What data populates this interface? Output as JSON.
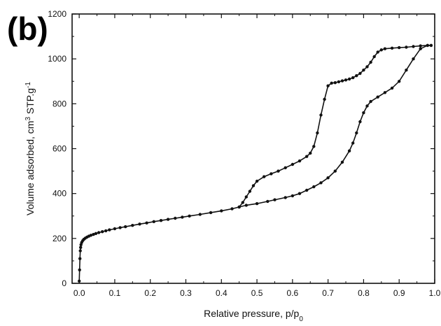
{
  "panel_label": "(b)",
  "chart_data": {
    "type": "line",
    "xlabel": "Relative pressure, p/p",
    "xlabel_sub": "0",
    "ylabel": "Volume adsorbed, cm",
    "ylabel_sup": "3",
    "ylabel_unit": " STP.g",
    "ylabel_unit_sup": "-1",
    "xlim": [
      -0.02,
      1.0
    ],
    "ylim": [
      0,
      1200
    ],
    "x_ticks": [
      "0.0",
      "0.1",
      "0.2",
      "0.3",
      "0.4",
      "0.5",
      "0.6",
      "0.7",
      "0.8",
      "0.9",
      "1.0"
    ],
    "y_ticks": [
      "0",
      "200",
      "400",
      "600",
      "800",
      "1000",
      "1200"
    ],
    "x_tick_values": [
      0,
      0.1,
      0.2,
      0.3,
      0.4,
      0.5,
      0.6,
      0.7,
      0.8,
      0.9,
      1.0
    ],
    "y_tick_values": [
      0,
      200,
      400,
      600,
      800,
      1000,
      1200
    ],
    "grid": false,
    "legend": "none",
    "color": "#111111",
    "series": [
      {
        "points": [
          [
            0.0,
            10
          ],
          [
            0.001,
            60
          ],
          [
            0.002,
            110
          ],
          [
            0.003,
            145
          ],
          [
            0.004,
            160
          ],
          [
            0.005,
            172
          ],
          [
            0.007,
            182
          ],
          [
            0.01,
            190
          ],
          [
            0.013,
            196
          ],
          [
            0.017,
            201
          ],
          [
            0.022,
            206
          ],
          [
            0.027,
            210
          ],
          [
            0.033,
            214
          ],
          [
            0.04,
            218
          ],
          [
            0.047,
            222
          ],
          [
            0.055,
            226
          ],
          [
            0.065,
            230
          ],
          [
            0.075,
            234
          ],
          [
            0.085,
            238
          ],
          [
            0.1,
            243
          ],
          [
            0.115,
            248
          ],
          [
            0.13,
            252
          ],
          [
            0.15,
            258
          ],
          [
            0.17,
            264
          ],
          [
            0.19,
            269
          ],
          [
            0.21,
            275
          ],
          [
            0.23,
            280
          ],
          [
            0.25,
            285
          ],
          [
            0.27,
            290
          ],
          [
            0.29,
            295
          ],
          [
            0.31,
            300
          ],
          [
            0.34,
            307
          ],
          [
            0.37,
            315
          ],
          [
            0.4,
            323
          ],
          [
            0.43,
            332
          ],
          [
            0.45,
            340
          ],
          [
            0.47,
            348
          ],
          [
            0.5,
            355
          ],
          [
            0.53,
            365
          ],
          [
            0.55,
            372
          ],
          [
            0.58,
            382
          ],
          [
            0.6,
            390
          ],
          [
            0.62,
            400
          ],
          [
            0.64,
            415
          ],
          [
            0.66,
            430
          ],
          [
            0.68,
            448
          ],
          [
            0.7,
            470
          ],
          [
            0.72,
            500
          ],
          [
            0.74,
            540
          ],
          [
            0.76,
            590
          ],
          [
            0.77,
            625
          ],
          [
            0.78,
            670
          ],
          [
            0.79,
            720
          ],
          [
            0.8,
            760
          ],
          [
            0.81,
            790
          ],
          [
            0.82,
            810
          ],
          [
            0.84,
            830
          ],
          [
            0.86,
            850
          ],
          [
            0.88,
            870
          ],
          [
            0.9,
            900
          ],
          [
            0.92,
            950
          ],
          [
            0.94,
            1000
          ],
          [
            0.96,
            1045
          ],
          [
            0.98,
            1060
          ],
          [
            0.99,
            1060
          ]
        ]
      },
      {
        "points": [
          [
            0.99,
            1060
          ],
          [
            0.98,
            1060
          ],
          [
            0.96,
            1058
          ],
          [
            0.94,
            1055
          ],
          [
            0.92,
            1052
          ],
          [
            0.9,
            1050
          ],
          [
            0.88,
            1048
          ],
          [
            0.86,
            1045
          ],
          [
            0.85,
            1040
          ],
          [
            0.84,
            1030
          ],
          [
            0.83,
            1010
          ],
          [
            0.82,
            985
          ],
          [
            0.81,
            965
          ],
          [
            0.8,
            950
          ],
          [
            0.79,
            935
          ],
          [
            0.78,
            925
          ],
          [
            0.77,
            916
          ],
          [
            0.76,
            910
          ],
          [
            0.75,
            906
          ],
          [
            0.74,
            902
          ],
          [
            0.73,
            898
          ],
          [
            0.72,
            894
          ],
          [
            0.71,
            892
          ],
          [
            0.7,
            880
          ],
          [
            0.69,
            820
          ],
          [
            0.68,
            750
          ],
          [
            0.67,
            670
          ],
          [
            0.66,
            610
          ],
          [
            0.65,
            580
          ],
          [
            0.64,
            565
          ],
          [
            0.62,
            545
          ],
          [
            0.6,
            530
          ],
          [
            0.58,
            515
          ],
          [
            0.56,
            500
          ],
          [
            0.54,
            488
          ],
          [
            0.52,
            475
          ],
          [
            0.5,
            455
          ],
          [
            0.49,
            435
          ],
          [
            0.48,
            410
          ],
          [
            0.47,
            385
          ],
          [
            0.46,
            360
          ],
          [
            0.45,
            340
          ]
        ]
      }
    ]
  }
}
